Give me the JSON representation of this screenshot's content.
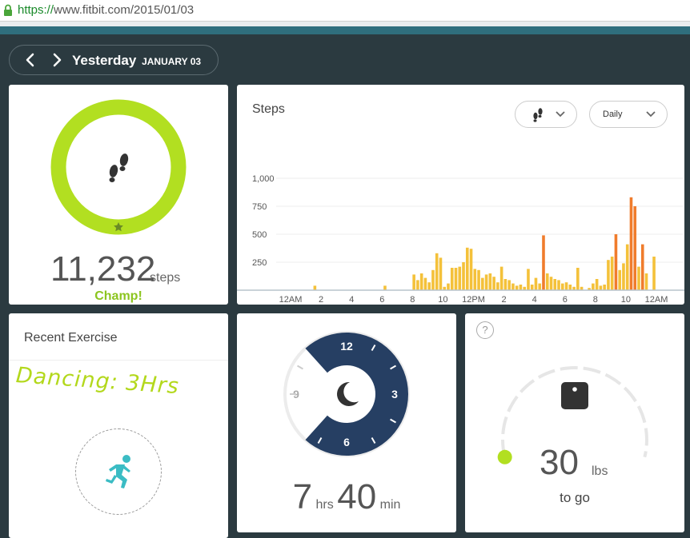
{
  "browser": {
    "url_protocol": "https://",
    "url_rest": "www.fitbit.com/2015/01/03"
  },
  "date_nav": {
    "title": "Yesterday",
    "subtitle": "JANUARY 03"
  },
  "steps": {
    "value": "11,232",
    "unit": "steps",
    "badge": "Champ!",
    "ring_color": "#b2df21"
  },
  "steps_chart": {
    "title": "Steps",
    "period_label": "Daily",
    "chart_data": {
      "type": "bar",
      "ylim": [
        0,
        1000
      ],
      "y_ticks": [
        "1,000",
        "750",
        "500",
        "250"
      ],
      "y_tick_values": [
        1000,
        750,
        500,
        250
      ],
      "x_ticks": [
        "12AM",
        "2",
        "4",
        "6",
        "8",
        "10",
        "12PM",
        "2",
        "4",
        "6",
        "8",
        "10",
        "12AM"
      ],
      "x_tick_hours": [
        0,
        2,
        4,
        6,
        8,
        10,
        12,
        14,
        16,
        18,
        20,
        22,
        24
      ],
      "bars": [
        {
          "h": 1.5,
          "v": 40,
          "c": "y"
        },
        {
          "h": 6.1,
          "v": 40,
          "c": "y"
        },
        {
          "h": 8.0,
          "v": 140,
          "c": "y"
        },
        {
          "h": 8.25,
          "v": 90,
          "c": "y"
        },
        {
          "h": 8.5,
          "v": 150,
          "c": "y"
        },
        {
          "h": 8.75,
          "v": 110,
          "c": "y"
        },
        {
          "h": 9.0,
          "v": 70,
          "c": "y"
        },
        {
          "h": 9.25,
          "v": 180,
          "c": "y"
        },
        {
          "h": 9.5,
          "v": 330,
          "c": "y"
        },
        {
          "h": 9.75,
          "v": 290,
          "c": "y"
        },
        {
          "h": 10.0,
          "v": 30,
          "c": "y"
        },
        {
          "h": 10.25,
          "v": 60,
          "c": "y"
        },
        {
          "h": 10.5,
          "v": 200,
          "c": "y"
        },
        {
          "h": 10.75,
          "v": 200,
          "c": "y"
        },
        {
          "h": 11.0,
          "v": 210,
          "c": "y"
        },
        {
          "h": 11.25,
          "v": 250,
          "c": "y"
        },
        {
          "h": 11.5,
          "v": 380,
          "c": "y"
        },
        {
          "h": 11.75,
          "v": 370,
          "c": "y"
        },
        {
          "h": 12.0,
          "v": 190,
          "c": "y"
        },
        {
          "h": 12.25,
          "v": 180,
          "c": "y"
        },
        {
          "h": 12.5,
          "v": 110,
          "c": "y"
        },
        {
          "h": 12.75,
          "v": 140,
          "c": "y"
        },
        {
          "h": 13.0,
          "v": 150,
          "c": "y"
        },
        {
          "h": 13.25,
          "v": 120,
          "c": "y"
        },
        {
          "h": 13.5,
          "v": 70,
          "c": "y"
        },
        {
          "h": 13.75,
          "v": 210,
          "c": "y"
        },
        {
          "h": 14.0,
          "v": 100,
          "c": "y"
        },
        {
          "h": 14.25,
          "v": 90,
          "c": "y"
        },
        {
          "h": 14.5,
          "v": 60,
          "c": "y"
        },
        {
          "h": 14.75,
          "v": 40,
          "c": "y"
        },
        {
          "h": 15.0,
          "v": 50,
          "c": "y"
        },
        {
          "h": 15.25,
          "v": 30,
          "c": "y"
        },
        {
          "h": 15.5,
          "v": 190,
          "c": "y"
        },
        {
          "h": 15.75,
          "v": 50,
          "c": "y"
        },
        {
          "h": 16.0,
          "v": 110,
          "c": "y"
        },
        {
          "h": 16.25,
          "v": 60,
          "c": "y"
        },
        {
          "h": 16.5,
          "v": 490,
          "c": "o"
        },
        {
          "h": 16.75,
          "v": 150,
          "c": "y"
        },
        {
          "h": 17.0,
          "v": 120,
          "c": "y"
        },
        {
          "h": 17.25,
          "v": 100,
          "c": "y"
        },
        {
          "h": 17.5,
          "v": 90,
          "c": "y"
        },
        {
          "h": 17.75,
          "v": 60,
          "c": "y"
        },
        {
          "h": 18.0,
          "v": 70,
          "c": "y"
        },
        {
          "h": 18.25,
          "v": 50,
          "c": "y"
        },
        {
          "h": 18.5,
          "v": 30,
          "c": "y"
        },
        {
          "h": 18.75,
          "v": 200,
          "c": "y"
        },
        {
          "h": 19.0,
          "v": 30,
          "c": "y"
        },
        {
          "h": 19.5,
          "v": 20,
          "c": "y"
        },
        {
          "h": 19.75,
          "v": 60,
          "c": "y"
        },
        {
          "h": 20.0,
          "v": 100,
          "c": "y"
        },
        {
          "h": 20.25,
          "v": 40,
          "c": "y"
        },
        {
          "h": 20.5,
          "v": 50,
          "c": "y"
        },
        {
          "h": 20.75,
          "v": 270,
          "c": "y"
        },
        {
          "h": 21.0,
          "v": 300,
          "c": "y"
        },
        {
          "h": 21.25,
          "v": 500,
          "c": "o"
        },
        {
          "h": 21.5,
          "v": 180,
          "c": "y"
        },
        {
          "h": 21.75,
          "v": 240,
          "c": "y"
        },
        {
          "h": 22.0,
          "v": 410,
          "c": "y"
        },
        {
          "h": 22.25,
          "v": 830,
          "c": "o"
        },
        {
          "h": 22.5,
          "v": 750,
          "c": "o"
        },
        {
          "h": 22.75,
          "v": 210,
          "c": "y"
        },
        {
          "h": 23.0,
          "v": 410,
          "c": "o"
        },
        {
          "h": 23.25,
          "v": 150,
          "c": "y"
        },
        {
          "h": 23.75,
          "v": 300,
          "c": "y"
        }
      ]
    }
  },
  "exercise": {
    "title": "Recent Exercise",
    "handwriting": "Dancing: 3Hrs"
  },
  "sleep": {
    "clock_labels": [
      "12",
      "3",
      "6",
      "9"
    ],
    "hours": "7",
    "hours_unit": "hrs",
    "minutes": "40",
    "minutes_unit": "min"
  },
  "weight": {
    "help": "?",
    "value": "30",
    "unit": "lbs",
    "caption": "to go"
  },
  "colors": {
    "accent_green": "#b2df21",
    "bar_yellow": "#f4c13a",
    "bar_orange": "#f07c2c",
    "sleep_navy": "#263f63",
    "exercise_teal": "#3bbcc4"
  }
}
